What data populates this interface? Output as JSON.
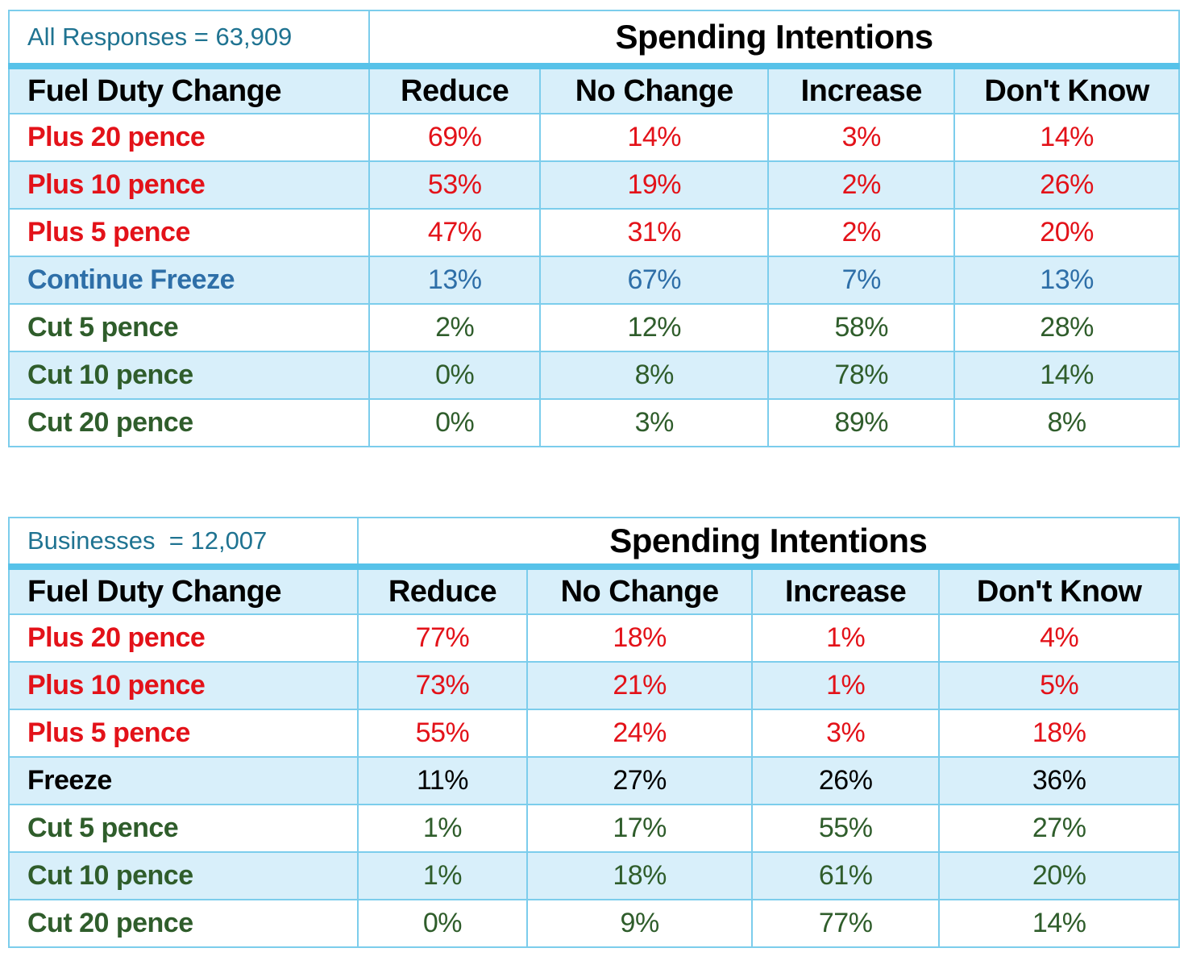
{
  "colors": {
    "red": "#e31219",
    "blue": "#2e6fa8",
    "green": "#2f5d2b",
    "teal": "#1f7391",
    "band": "#57c2e9",
    "border": "#7ccdec",
    "alt_row_bg": "#d8effa"
  },
  "chart_data": [
    {
      "type": "table",
      "caption": "All Responses = 63,909",
      "title": "Spending Intentions",
      "columns": [
        "Fuel Duty Change",
        "Reduce",
        "No Change",
        "Increase",
        "Don't Know"
      ],
      "rows": [
        {
          "label": "Plus 20 pence",
          "color": "red",
          "values": [
            "69%",
            "14%",
            "3%",
            "14%"
          ]
        },
        {
          "label": "Plus 10 pence",
          "color": "red",
          "values": [
            "53%",
            "19%",
            "2%",
            "26%"
          ]
        },
        {
          "label": "Plus 5 pence",
          "color": "red",
          "values": [
            "47%",
            "31%",
            "2%",
            "20%"
          ]
        },
        {
          "label": "Continue Freeze",
          "color": "blue",
          "values": [
            "13%",
            "67%",
            "7%",
            "13%"
          ]
        },
        {
          "label": "Cut 5 pence",
          "color": "green",
          "values": [
            "2%",
            "12%",
            "58%",
            "28%"
          ]
        },
        {
          "label": "Cut 10 pence",
          "color": "green",
          "values": [
            "0%",
            "8%",
            "78%",
            "14%"
          ]
        },
        {
          "label": "Cut 20 pence",
          "color": "green",
          "values": [
            "0%",
            "3%",
            "89%",
            "8%"
          ]
        }
      ]
    },
    {
      "type": "table",
      "caption": "Businesses  = 12,007",
      "title": "Spending Intentions",
      "columns": [
        "Fuel Duty Change",
        "Reduce",
        "No Change",
        "Increase",
        "Don't Know"
      ],
      "rows": [
        {
          "label": "Plus 20 pence",
          "color": "red",
          "values": [
            "77%",
            "18%",
            "1%",
            "4%"
          ]
        },
        {
          "label": "Plus 10 pence",
          "color": "red",
          "values": [
            "73%",
            "21%",
            "1%",
            "5%"
          ]
        },
        {
          "label": "Plus 5 pence",
          "color": "red",
          "values": [
            "55%",
            "24%",
            "3%",
            "18%"
          ]
        },
        {
          "label": "Freeze",
          "color": "black",
          "values": [
            "11%",
            "27%",
            "26%",
            "36%"
          ]
        },
        {
          "label": "Cut 5 pence",
          "color": "green",
          "values": [
            "1%",
            "17%",
            "55%",
            "27%"
          ]
        },
        {
          "label": "Cut 10 pence",
          "color": "green",
          "values": [
            "1%",
            "18%",
            "61%",
            "20%"
          ]
        },
        {
          "label": "Cut 20 pence",
          "color": "green",
          "values": [
            "0%",
            "9%",
            "77%",
            "14%"
          ]
        }
      ]
    }
  ]
}
